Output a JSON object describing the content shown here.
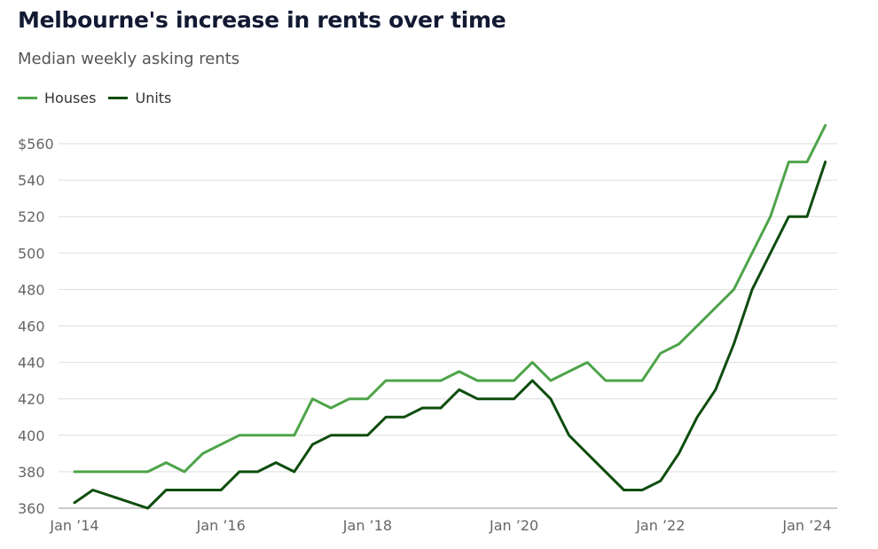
{
  "title": "Melbourne's increase in rents over time",
  "subtitle": "Median weekly asking rents",
  "legend": [
    {
      "label": "Houses",
      "color": "#4ea44a"
    },
    {
      "label": "Units",
      "color": "#0e4d0e"
    }
  ],
  "chart_data": {
    "type": "line",
    "title": "Melbourne's increase in rents over time",
    "subtitle": "Median weekly asking rents",
    "xlabel": "",
    "ylabel": "",
    "ylim": [
      360,
      570
    ],
    "xlim": [
      "2014-01",
      "2024-01"
    ],
    "y_ticks": [
      360,
      380,
      400,
      420,
      440,
      460,
      480,
      500,
      520,
      540,
      560
    ],
    "y_tick_labels": [
      "360",
      "380",
      "400",
      "420",
      "440",
      "460",
      "480",
      "500",
      "520",
      "540",
      "$560"
    ],
    "x_ticks": [
      "2014-01",
      "2016-01",
      "2018-01",
      "2020-01",
      "2022-01",
      "2024-01"
    ],
    "x_tick_labels": [
      "Jan ’14",
      "Jan ’16",
      "Jan ’18",
      "Jan ’20",
      "Jan ’22",
      "Jan ’24"
    ],
    "grid": true,
    "legend_position": "top-left",
    "series": [
      {
        "name": "Houses",
        "color": "#4ea44a",
        "points": [
          [
            "2014-01",
            380
          ],
          [
            "2015-01",
            380
          ],
          [
            "2015-04",
            385
          ],
          [
            "2015-07",
            380
          ],
          [
            "2015-10",
            390
          ],
          [
            "2016-04",
            400
          ],
          [
            "2016-07",
            400
          ],
          [
            "2017-01",
            400
          ],
          [
            "2017-04",
            420
          ],
          [
            "2017-07",
            415
          ],
          [
            "2017-10",
            420
          ],
          [
            "2018-01",
            420
          ],
          [
            "2018-04",
            430
          ],
          [
            "2019-01",
            430
          ],
          [
            "2019-04",
            435
          ],
          [
            "2019-07",
            430
          ],
          [
            "2020-01",
            430
          ],
          [
            "2020-04",
            440
          ],
          [
            "2020-07",
            430
          ],
          [
            "2021-01",
            440
          ],
          [
            "2021-04",
            430
          ],
          [
            "2021-10",
            430
          ],
          [
            "2022-01",
            445
          ],
          [
            "2022-04",
            450
          ],
          [
            "2023-01",
            480
          ],
          [
            "2023-07",
            520
          ],
          [
            "2023-10",
            550
          ],
          [
            "2024-01",
            550
          ],
          [
            "2024-04",
            570
          ]
        ]
      },
      {
        "name": "Units",
        "color": "#0e4d0e",
        "points": [
          [
            "2014-01",
            363
          ],
          [
            "2014-04",
            370
          ],
          [
            "2015-01",
            360
          ],
          [
            "2015-04",
            370
          ],
          [
            "2016-01",
            370
          ],
          [
            "2016-04",
            380
          ],
          [
            "2016-07",
            380
          ],
          [
            "2016-10",
            385
          ],
          [
            "2017-01",
            380
          ],
          [
            "2017-04",
            395
          ],
          [
            "2017-07",
            400
          ],
          [
            "2018-01",
            400
          ],
          [
            "2018-04",
            410
          ],
          [
            "2018-07",
            410
          ],
          [
            "2018-10",
            415
          ],
          [
            "2019-01",
            415
          ],
          [
            "2019-04",
            425
          ],
          [
            "2019-07",
            420
          ],
          [
            "2020-01",
            420
          ],
          [
            "2020-04",
            430
          ],
          [
            "2020-07",
            420
          ],
          [
            "2020-10",
            400
          ],
          [
            "2021-01",
            390
          ],
          [
            "2021-07",
            370
          ],
          [
            "2021-10",
            370
          ],
          [
            "2022-01",
            375
          ],
          [
            "2022-04",
            390
          ],
          [
            "2022-07",
            410
          ],
          [
            "2022-10",
            425
          ],
          [
            "2023-01",
            450
          ],
          [
            "2023-04",
            480
          ],
          [
            "2023-07",
            500
          ],
          [
            "2023-10",
            520
          ],
          [
            "2024-01",
            520
          ],
          [
            "2024-04",
            550
          ]
        ]
      }
    ]
  }
}
